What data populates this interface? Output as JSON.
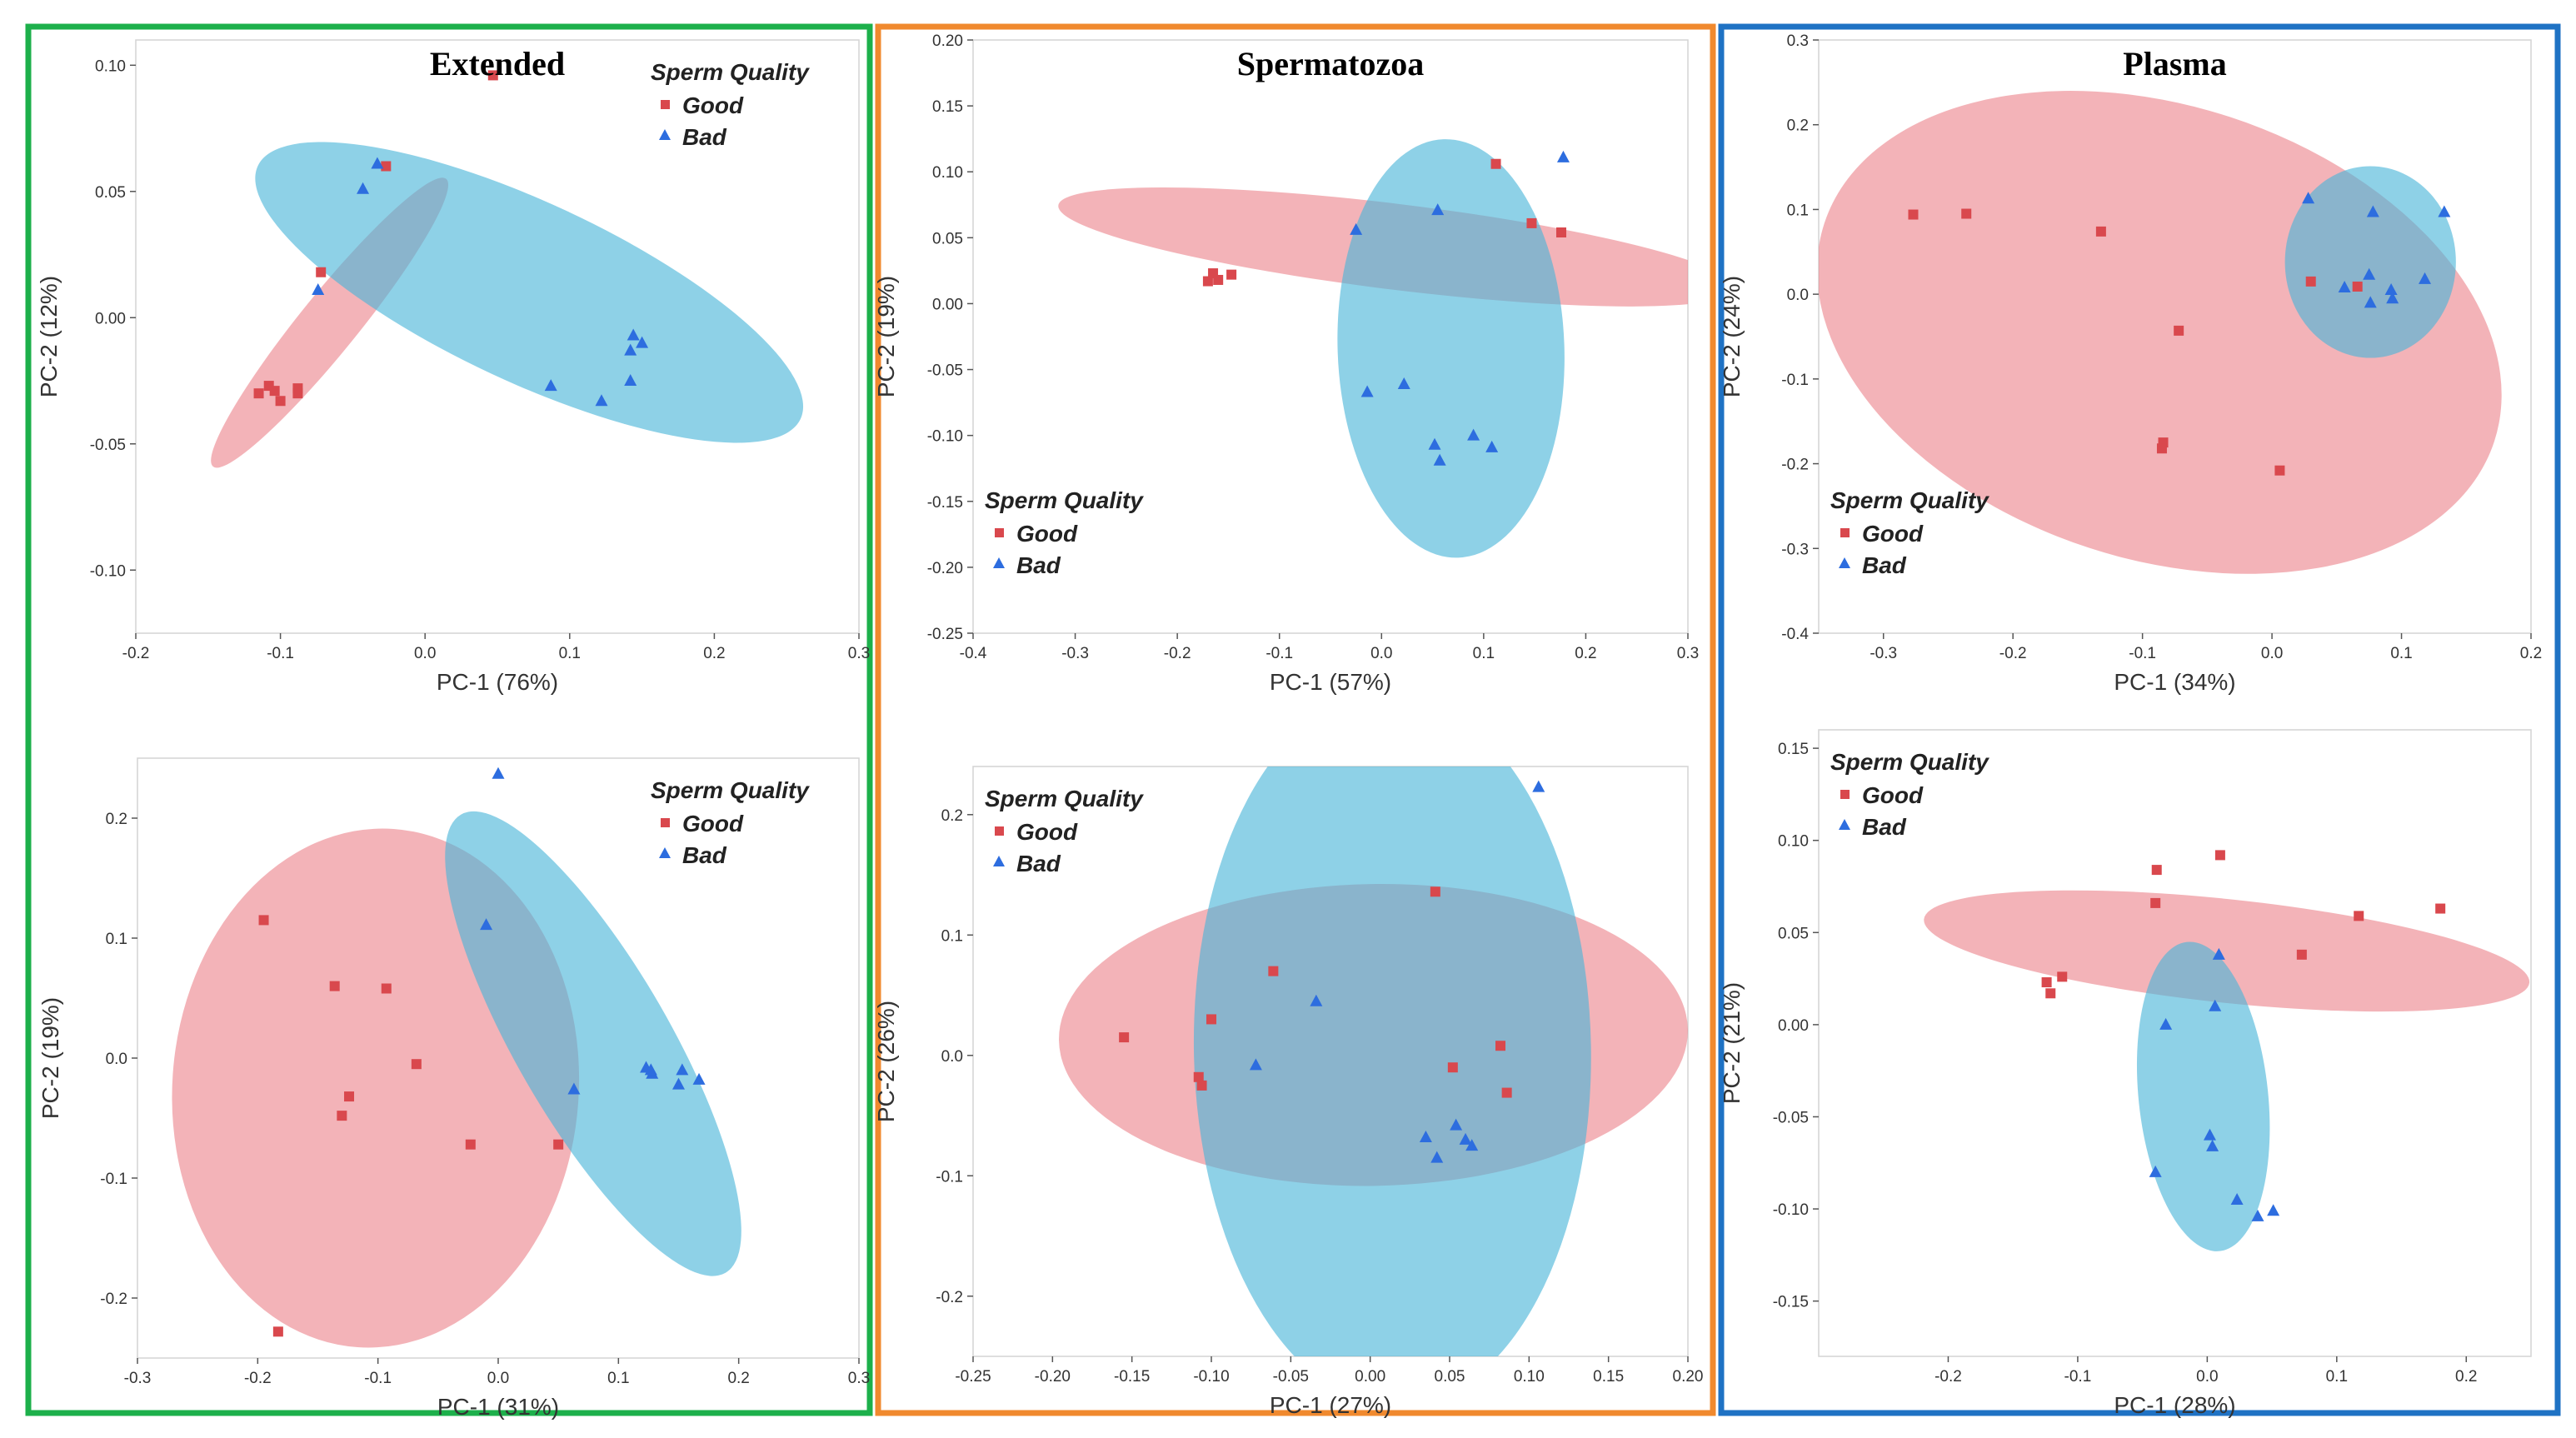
{
  "colors": {
    "extended": "#1db04b",
    "spermatozoa": "#f0892e",
    "plasma": "#1f72c4",
    "good": "#d9484d",
    "good_fill": "rgba(236,132,140,0.62)",
    "bad": "#2d6ddf",
    "bad_fill": "rgba(72,180,216,0.62)"
  },
  "groups": [
    {
      "key": "extended",
      "title": "Extended"
    },
    {
      "key": "spermatozoa",
      "title": "Spermatozoa"
    },
    {
      "key": "plasma",
      "title": "Plasma"
    }
  ],
  "chart_data": [
    {
      "id": "extended-top",
      "type": "scatter",
      "group": "extended",
      "row": 0,
      "title": "Extended",
      "xlabel": "PC-1 (76%)",
      "ylabel": "PC-2 (12%)",
      "xlim": [
        -0.2,
        0.3
      ],
      "ylim": [
        -0.125,
        0.11
      ],
      "xticks": [
        "-0.2",
        "-0.1",
        "0.0",
        "0.1",
        "0.2",
        "0.3"
      ],
      "xtickvals": [
        -0.2,
        -0.1,
        0,
        0.1,
        0.2,
        0.3
      ],
      "yticks": [
        "-0.10",
        "-0.05",
        "0.00",
        "0.05",
        "0.10"
      ],
      "ytickvals": [
        -0.1,
        -0.05,
        0,
        0.05,
        0.1
      ],
      "legend": {
        "title": "Sperm Quality",
        "position": "top-right",
        "items": [
          "Good",
          "Bad"
        ]
      },
      "series": [
        {
          "name": "Good",
          "marker": "square",
          "points": [
            [
              0.047,
              0.096
            ],
            [
              -0.027,
              0.06
            ],
            [
              -0.072,
              0.018
            ],
            [
              -0.115,
              -0.03
            ],
            [
              -0.108,
              -0.027
            ],
            [
              -0.1,
              -0.033
            ],
            [
              -0.088,
              -0.028
            ],
            [
              -0.088,
              -0.03
            ],
            [
              -0.104,
              -0.029
            ]
          ],
          "ellipse": {
            "cx": -0.066,
            "cy": -0.002,
            "rx": 0.128,
            "ry": 0.02,
            "angle_deg": 51
          }
        },
        {
          "name": "Bad",
          "marker": "triangle",
          "points": [
            [
              -0.033,
              0.061
            ],
            [
              -0.043,
              0.051
            ],
            [
              -0.074,
              0.011
            ],
            [
              0.087,
              -0.027
            ],
            [
              0.122,
              -0.033
            ],
            [
              0.142,
              -0.025
            ],
            [
              0.142,
              -0.013
            ],
            [
              0.144,
              -0.007
            ],
            [
              0.15,
              -0.01
            ]
          ],
          "ellipse": {
            "cx": 0.072,
            "cy": 0.01,
            "rx": 0.207,
            "ry": 0.062,
            "angle_deg": -25
          }
        }
      ]
    },
    {
      "id": "extended-bottom",
      "type": "scatter",
      "group": "extended",
      "row": 1,
      "xlabel": "PC-1 (31%)",
      "ylabel": "PC-2 (19%)",
      "xlim": [
        -0.3,
        0.3
      ],
      "ylim": [
        -0.25,
        0.25
      ],
      "xticks": [
        "-0.3",
        "-0.2",
        "-0.1",
        "0.0",
        "0.1",
        "0.2",
        "0.3"
      ],
      "xtickvals": [
        -0.3,
        -0.2,
        -0.1,
        0,
        0.1,
        0.2,
        0.3
      ],
      "yticks": [
        "-0.2",
        "-0.1",
        "0.0",
        "0.1",
        "0.2"
      ],
      "ytickvals": [
        -0.2,
        -0.1,
        0,
        0.1,
        0.2
      ],
      "legend": {
        "title": "Sperm Quality",
        "position": "top-right",
        "items": [
          "Good",
          "Bad"
        ]
      },
      "series": [
        {
          "name": "Good",
          "marker": "square",
          "points": [
            [
              -0.195,
              0.115
            ],
            [
              -0.136,
              0.06
            ],
            [
              -0.093,
              0.058
            ],
            [
              -0.124,
              -0.032
            ],
            [
              -0.13,
              -0.048
            ],
            [
              -0.068,
              -0.005
            ],
            [
              -0.023,
              -0.072
            ],
            [
              0.05,
              -0.072
            ],
            [
              -0.183,
              -0.228
            ]
          ],
          "ellipse": {
            "cx": -0.102,
            "cy": -0.025,
            "rx": 0.169,
            "ry": 0.216,
            "angle_deg": -4
          }
        },
        {
          "name": "Bad",
          "marker": "triangle",
          "points": [
            [
              0.0,
              0.237
            ],
            [
              -0.01,
              0.111
            ],
            [
              0.063,
              -0.026
            ],
            [
              0.123,
              -0.008
            ],
            [
              0.128,
              -0.013
            ],
            [
              0.127,
              -0.01
            ],
            [
              0.15,
              -0.022
            ],
            [
              0.153,
              -0.01
            ],
            [
              0.167,
              -0.018
            ]
          ],
          "ellipse": {
            "cx": 0.079,
            "cy": 0.012,
            "rx": 0.22,
            "ry": 0.064,
            "angle_deg": -60
          }
        }
      ]
    },
    {
      "id": "spermatozoa-top",
      "type": "scatter",
      "group": "spermatozoa",
      "row": 0,
      "title": "Spermatozoa",
      "xlabel": "PC-1 (57%)",
      "ylabel": "PC-2 (19%)",
      "xlim": [
        -0.4,
        0.3
      ],
      "ylim": [
        -0.25,
        0.2
      ],
      "xticks": [
        "-0.4",
        "-0.3",
        "-0.2",
        "-0.1",
        "0.0",
        "0.1",
        "0.2",
        "0.3"
      ],
      "xtickvals": [
        -0.4,
        -0.3,
        -0.2,
        -0.1,
        0,
        0.1,
        0.2,
        0.3
      ],
      "yticks": [
        "-0.25",
        "-0.20",
        "-0.15",
        "-0.10",
        "-0.05",
        "0.00",
        "0.05",
        "0.10",
        "0.15",
        "0.20"
      ],
      "ytickvals": [
        -0.25,
        -0.2,
        -0.15,
        -0.1,
        -0.05,
        0,
        0.05,
        0.1,
        0.15,
        0.2
      ],
      "legend": {
        "title": "Sperm Quality",
        "position": "bottom-left",
        "items": [
          "Good",
          "Bad"
        ]
      },
      "series": [
        {
          "name": "Good",
          "marker": "square",
          "points": [
            [
              0.112,
              0.106
            ],
            [
              0.147,
              0.061
            ],
            [
              0.176,
              0.054
            ],
            [
              -0.17,
              0.017
            ],
            [
              -0.165,
              0.023
            ],
            [
              -0.16,
              0.018
            ],
            [
              -0.147,
              0.022
            ]
          ],
          "ellipse": {
            "cx": 0.015,
            "cy": 0.043,
            "rx": 0.334,
            "ry": 0.042,
            "angle_deg": -7
          }
        },
        {
          "name": "Bad",
          "marker": "triangle",
          "points": [
            [
              0.178,
              0.111
            ],
            [
              0.055,
              0.071
            ],
            [
              -0.025,
              0.056
            ],
            [
              -0.014,
              -0.067
            ],
            [
              0.022,
              -0.061
            ],
            [
              0.09,
              -0.1
            ],
            [
              0.052,
              -0.107
            ],
            [
              0.057,
              -0.119
            ],
            [
              0.108,
              -0.109
            ]
          ],
          "ellipse": {
            "cx": 0.068,
            "cy": -0.034,
            "rx": 0.111,
            "ry": 0.205,
            "angle_deg": 2
          }
        }
      ]
    },
    {
      "id": "spermatozoa-bottom",
      "type": "scatter",
      "group": "spermatozoa",
      "row": 1,
      "xlabel": "PC-1 (27%)",
      "ylabel": "PC-2 (26%)",
      "xlim": [
        -0.25,
        0.2
      ],
      "ylim": [
        -0.25,
        0.24
      ],
      "xticks": [
        "-0.25",
        "-0.20",
        "-0.15",
        "-0.10",
        "-0.05",
        "0.00",
        "0.05",
        "0.10",
        "0.15",
        "0.20"
      ],
      "xtickvals": [
        -0.25,
        -0.2,
        -0.15,
        -0.1,
        -0.05,
        0,
        0.05,
        0.1,
        0.15,
        0.2
      ],
      "yticks": [
        "-0.2",
        "-0.1",
        "0.0",
        "0.1",
        "0.2"
      ],
      "ytickvals": [
        -0.2,
        -0.1,
        0,
        0.1,
        0.2
      ],
      "legend": {
        "title": "Sperm Quality",
        "position": "top-left",
        "items": [
          "Good",
          "Bad"
        ]
      },
      "series": [
        {
          "name": "Good",
          "marker": "square",
          "points": [
            [
              0.041,
              0.136
            ],
            [
              -0.061,
              0.07
            ],
            [
              -0.1,
              0.03
            ],
            [
              -0.155,
              0.015
            ],
            [
              -0.108,
              -0.018
            ],
            [
              -0.106,
              -0.025
            ],
            [
              0.052,
              -0.01
            ],
            [
              0.082,
              0.008
            ],
            [
              0.086,
              -0.031
            ]
          ],
          "ellipse": {
            "cx": 0.002,
            "cy": 0.017,
            "rx": 0.198,
            "ry": 0.095,
            "angle_deg": 1
          }
        },
        {
          "name": "Bad",
          "marker": "triangle",
          "points": [
            [
              0.106,
              0.223
            ],
            [
              -0.034,
              0.045
            ],
            [
              -0.072,
              -0.008
            ],
            [
              0.035,
              -0.068
            ],
            [
              0.054,
              -0.058
            ],
            [
              0.06,
              -0.07
            ],
            [
              0.064,
              -0.075
            ],
            [
              0.042,
              -0.085
            ]
          ],
          "ellipse": {
            "cx": 0.014,
            "cy": 0.005,
            "rx": 0.125,
            "ry": 0.225,
            "angle_deg": 1
          }
        }
      ]
    },
    {
      "id": "plasma-top",
      "type": "scatter",
      "group": "plasma",
      "row": 0,
      "title": "Plasma",
      "xlabel": "PC-1 (34%)",
      "ylabel": "PC-2 (24%)",
      "xlim": [
        -0.35,
        0.2
      ],
      "ylim": [
        -0.4,
        0.3
      ],
      "xticks": [
        "-0.3",
        "-0.2",
        "-0.1",
        "0.0",
        "0.1",
        "0.2"
      ],
      "xtickvals": [
        -0.3,
        -0.2,
        -0.1,
        0,
        0.1,
        0.2
      ],
      "yticks": [
        "-0.4",
        "-0.3",
        "-0.2",
        "-0.1",
        "0.0",
        "0.1",
        "0.2",
        "0.3"
      ],
      "ytickvals": [
        -0.4,
        -0.3,
        -0.2,
        -0.1,
        0,
        0.1,
        0.2,
        0.3
      ],
      "legend": {
        "title": "Sperm Quality",
        "position": "bottom-left",
        "items": [
          "Good",
          "Bad"
        ]
      },
      "series": [
        {
          "name": "Good",
          "marker": "square",
          "points": [
            [
              -0.277,
              0.094
            ],
            [
              -0.236,
              0.095
            ],
            [
              -0.132,
              0.074
            ],
            [
              -0.072,
              -0.043
            ],
            [
              -0.084,
              -0.175
            ],
            [
              -0.085,
              -0.182
            ],
            [
              0.006,
              -0.208
            ],
            [
              0.03,
              0.015
            ],
            [
              0.066,
              0.009
            ]
          ],
          "ellipse": {
            "cx": -0.087,
            "cy": -0.045,
            "rx": 0.272,
            "ry": 0.175,
            "angle_deg": -18
          }
        },
        {
          "name": "Bad",
          "marker": "triangle",
          "points": [
            [
              0.028,
              0.113
            ],
            [
              0.078,
              0.097
            ],
            [
              0.133,
              0.097
            ],
            [
              0.075,
              0.023
            ],
            [
              0.092,
              0.005
            ],
            [
              0.056,
              0.008
            ],
            [
              0.076,
              -0.01
            ],
            [
              0.093,
              -0.005
            ],
            [
              0.118,
              0.018
            ]
          ],
          "ellipse": {
            "cx": 0.076,
            "cy": 0.038,
            "rx": 0.066,
            "ry": 0.074,
            "angle_deg": 0
          }
        }
      ]
    },
    {
      "id": "plasma-bottom",
      "type": "scatter",
      "group": "plasma",
      "row": 1,
      "xlabel": "PC-1 (28%)",
      "ylabel": "PC-2 (21%)",
      "xlim": [
        -0.3,
        0.25
      ],
      "ylim": [
        -0.18,
        0.16
      ],
      "xticks": [
        "-0.2",
        "-0.1",
        "0.0",
        "0.1",
        "0.2"
      ],
      "xtickvals": [
        -0.2,
        -0.1,
        0,
        0.1,
        0.2
      ],
      "yticks": [
        "-0.15",
        "-0.10",
        "-0.05",
        "0.00",
        "0.05",
        "0.10",
        "0.15"
      ],
      "ytickvals": [
        -0.15,
        -0.1,
        -0.05,
        0,
        0.05,
        0.1,
        0.15
      ],
      "legend": {
        "title": "Sperm Quality",
        "position": "top-left",
        "items": [
          "Good",
          "Bad"
        ]
      },
      "series": [
        {
          "name": "Good",
          "marker": "square",
          "points": [
            [
              -0.039,
              0.084
            ],
            [
              0.01,
              0.092
            ],
            [
              -0.04,
              0.066
            ],
            [
              0.117,
              0.059
            ],
            [
              0.18,
              0.063
            ],
            [
              0.073,
              0.038
            ],
            [
              -0.112,
              0.026
            ],
            [
              -0.124,
              0.023
            ],
            [
              -0.121,
              0.017
            ]
          ],
          "ellipse": {
            "cx": 0.015,
            "cy": 0.04,
            "rx": 0.235,
            "ry": 0.04,
            "angle_deg": -6
          }
        },
        {
          "name": "Bad",
          "marker": "triangle",
          "points": [
            [
              0.009,
              0.038
            ],
            [
              0.006,
              0.01
            ],
            [
              -0.032,
              0.0
            ],
            [
              0.002,
              -0.06
            ],
            [
              0.004,
              -0.066
            ],
            [
              -0.04,
              -0.08
            ],
            [
              0.023,
              -0.095
            ],
            [
              0.039,
              -0.104
            ],
            [
              0.051,
              -0.101
            ]
          ],
          "ellipse": {
            "cx": -0.003,
            "cy": -0.039,
            "rx": 0.12,
            "ry": 0.05,
            "angle_deg": -84
          }
        }
      ]
    }
  ]
}
